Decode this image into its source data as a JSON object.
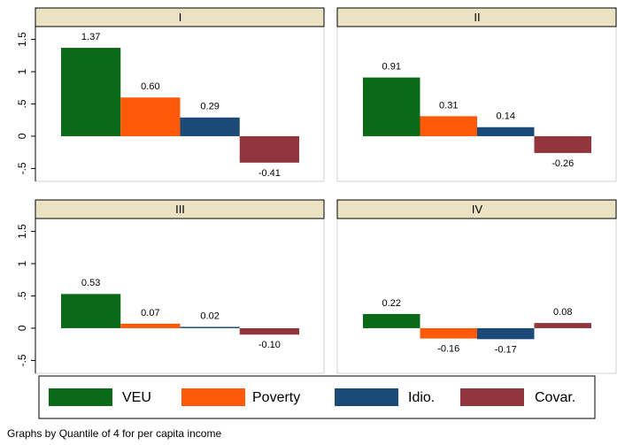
{
  "chart_data": [
    {
      "type": "bar",
      "title": "I",
      "ylim": [
        -0.7,
        1.7
      ],
      "yticks": [
        {
          "value": -0.5,
          "label": "-.5"
        },
        0,
        {
          "value": 0.5,
          "label": ".5"
        },
        1,
        {
          "value": 1.5,
          "label": "1.5"
        }
      ],
      "series": [
        {
          "name": "VEU",
          "color": "#0b6a17",
          "values": [
            1.37
          ]
        },
        {
          "name": "Poverty",
          "color": "#ff5a0a",
          "values": [
            0.6
          ],
          "value_labels": [
            "0.60"
          ]
        },
        {
          "name": "Idio.",
          "color": "#1b4a78",
          "values": [
            0.29
          ]
        },
        {
          "name": "Covar.",
          "color": "#90363c",
          "values": [
            -0.41
          ]
        }
      ]
    },
    {
      "type": "bar",
      "title": "II",
      "ylim": [
        -0.7,
        1.7
      ],
      "series": [
        {
          "name": "VEU",
          "color": "#0b6a17",
          "values": [
            0.91
          ]
        },
        {
          "name": "Poverty",
          "color": "#ff5a0a",
          "values": [
            0.31
          ]
        },
        {
          "name": "Idio.",
          "color": "#1b4a78",
          "values": [
            0.14
          ]
        },
        {
          "name": "Covar.",
          "color": "#90363c",
          "values": [
            -0.26
          ]
        }
      ]
    },
    {
      "type": "bar",
      "title": "III",
      "ylim": [
        -0.7,
        1.7
      ],
      "yticks": [
        {
          "value": -0.5,
          "label": "-.5"
        },
        0,
        {
          "value": 0.5,
          "label": ".5"
        },
        1,
        {
          "value": 1.5,
          "label": "1.5"
        }
      ],
      "series": [
        {
          "name": "VEU",
          "color": "#0b6a17",
          "values": [
            0.53
          ]
        },
        {
          "name": "Poverty",
          "color": "#ff5a0a",
          "values": [
            0.07
          ]
        },
        {
          "name": "Idio.",
          "color": "#1b4a78",
          "values": [
            0.02
          ]
        },
        {
          "name": "Covar.",
          "color": "#90363c",
          "values": [
            -0.1
          ],
          "value_labels": [
            "-0.10"
          ]
        }
      ]
    },
    {
      "type": "bar",
      "title": "IV",
      "ylim": [
        -0.7,
        1.7
      ],
      "series": [
        {
          "name": "VEU",
          "color": "#0b6a17",
          "values": [
            0.22
          ]
        },
        {
          "name": "Poverty",
          "color": "#ff5a0a",
          "values": [
            -0.16
          ]
        },
        {
          "name": "Idio.",
          "color": "#1b4a78",
          "values": [
            -0.17
          ]
        },
        {
          "name": "Covar.",
          "color": "#90363c",
          "values": [
            0.08
          ]
        }
      ]
    }
  ],
  "note": "Graphs by Quantile of 4 for per capita income"
}
